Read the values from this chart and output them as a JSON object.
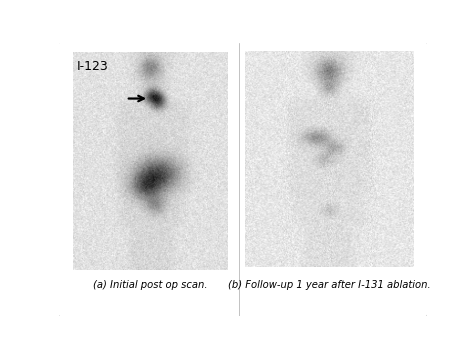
{
  "title": "I-123",
  "label_a": "(a) Initial post op scan.",
  "label_b": "(b) Follow-up 1 year after I-131 ablation.",
  "figsize": [
    4.74,
    3.55
  ],
  "dpi": 100,
  "border_color": "#cccccc",
  "bg_color": "#ffffff",
  "scan_bg": 0.88,
  "noise_std": 0.045
}
